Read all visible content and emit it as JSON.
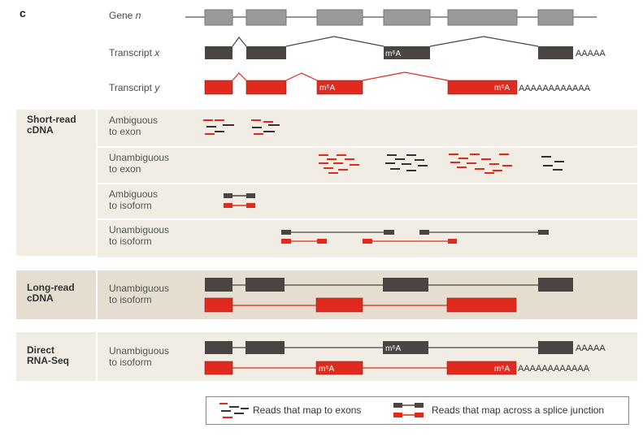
{
  "panel_letter": "c",
  "top_rows": {
    "gene": "Gene",
    "gene_var": "n",
    "transcript_x": "Transcript",
    "transcript_x_var": "x",
    "transcript_y": "Transcript",
    "transcript_y_var": "y"
  },
  "mod_label": "m⁶A",
  "polyA_short": "AAAAA",
  "polyA_long": "AAAAAAAAAAAA",
  "categories": {
    "short_read": "Short-read\ncDNA",
    "long_read": "Long-read\ncDNA",
    "direct_rna": "Direct\nRNA-Seq"
  },
  "sub_rows": {
    "ambiguous_exon": "Ambiguous\nto exon",
    "unambiguous_exon": "Unambiguous\nto exon",
    "ambiguous_isoform": "Ambiguous\nto isoform",
    "unambiguous_isoform": "Unambiguous\nto isoform",
    "long_unambiguous_isoform": "Unambiguous\nto isoform",
    "direct_unambiguous_isoform": "Unambiguous\nto isoform"
  },
  "legend": {
    "exon_reads": "Reads that map to exons",
    "junction_reads": "Reads that map across a splice junction"
  },
  "colors": {
    "gene_grey": "#9a9a9a",
    "transcript_x": "#4a4543",
    "transcript_y": "#e02a1e",
    "band": "#f1ede4",
    "band_dark": "#e4ddd0"
  }
}
